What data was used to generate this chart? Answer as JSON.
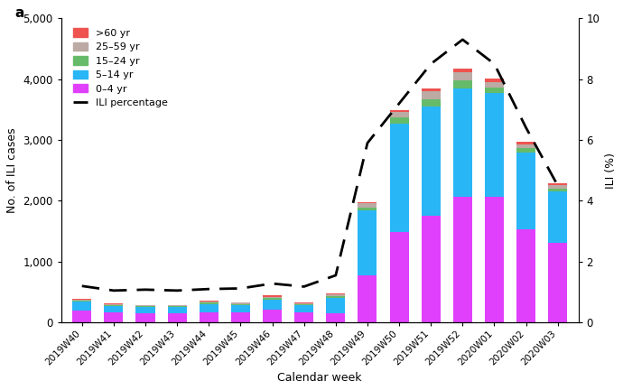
{
  "weeks": [
    "2019W40",
    "2019W41",
    "2019W42",
    "2019W43",
    "2019W44",
    "2019W45",
    "2019W46",
    "2019W47",
    "2019W48",
    "2019W49",
    "2019W50",
    "2019W51",
    "2019W52",
    "2020W01",
    "2020W02",
    "2020W03"
  ],
  "colors": {
    "0-4 yr": "#e040fb",
    "5-14 yr": "#29b6f6",
    "15-24 yr": "#66bb6a",
    "25-59 yr": "#bcaaa4",
    ">60 yr": "#ef5350"
  },
  "stacked_data": {
    "0-4 yr": [
      200,
      165,
      155,
      155,
      165,
      160,
      215,
      165,
      155,
      770,
      1490,
      1750,
      2060,
      2060,
      1530,
      1310
    ],
    "5-14 yr": [
      140,
      110,
      100,
      100,
      140,
      130,
      160,
      120,
      250,
      1070,
      1780,
      1800,
      1790,
      1710,
      1270,
      840
    ],
    "15-24 yr": [
      18,
      13,
      12,
      12,
      18,
      17,
      22,
      16,
      28,
      55,
      95,
      125,
      125,
      95,
      72,
      55
    ],
    "25-59 yr": [
      22,
      15,
      14,
      12,
      20,
      18,
      28,
      16,
      30,
      60,
      90,
      120,
      140,
      90,
      60,
      50
    ],
    ">60 yr": [
      10,
      8,
      8,
      8,
      10,
      10,
      16,
      10,
      15,
      25,
      40,
      55,
      65,
      55,
      32,
      30
    ]
  },
  "ili_percentage": [
    1.2,
    1.05,
    1.08,
    1.05,
    1.1,
    1.12,
    1.28,
    1.18,
    1.55,
    5.9,
    7.2,
    8.5,
    9.3,
    8.5,
    6.4,
    4.5
  ],
  "ylim_left": [
    0,
    5000
  ],
  "ylim_right": [
    0,
    10
  ],
  "ylabel_left": "No. of ILI cases",
  "ylabel_right": "ILI (%)",
  "xlabel": "Calendar week",
  "panel_label": "a",
  "yticks_left": [
    0,
    1000,
    2000,
    3000,
    4000,
    5000
  ],
  "yticks_right": [
    0,
    2,
    4,
    6,
    8,
    10
  ],
  "legend_order_labels": [
    ">60 yr",
    "25–59 yr",
    "15–24 yr",
    "5–14 yr",
    "0–4 yr"
  ],
  "legend_order_keys": [
    ">60 yr",
    "25-59 yr",
    "15-24 yr",
    "5-14 yr",
    "0-4 yr"
  ]
}
